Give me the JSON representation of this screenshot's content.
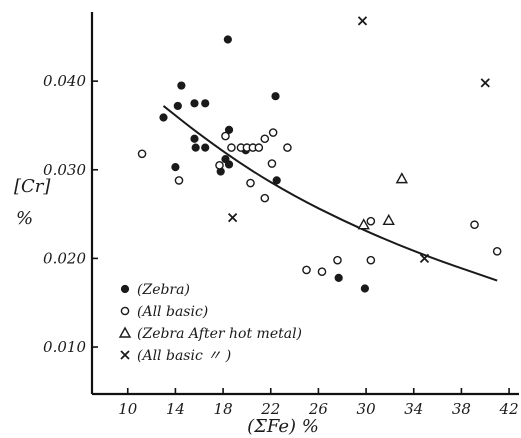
{
  "chart_data": {
    "type": "scatter",
    "title": "",
    "xlabel": "(ΣFe)   %",
    "ylabel": [
      "[Cr]",
      "%"
    ],
    "xlim": [
      7,
      43
    ],
    "ylim": [
      0.0047,
      0.0478
    ],
    "x_ticks": [
      "10",
      "14",
      "18",
      "22",
      "26",
      "30",
      "34",
      "38",
      "42"
    ],
    "y_ticks": [
      "0.010",
      "0.020",
      "0.030",
      "0.040"
    ],
    "grid": false,
    "legend_position": "bottom-left",
    "series": [
      {
        "name": "(Zebra)",
        "marker": "filled-circle",
        "color": "#1a1a1a",
        "points": [
          [
            13.0,
            0.0359
          ],
          [
            14.2,
            0.0372
          ],
          [
            14.5,
            0.0395
          ],
          [
            14.0,
            0.0303
          ],
          [
            15.6,
            0.0375
          ],
          [
            16.5,
            0.0375
          ],
          [
            15.6,
            0.0335
          ],
          [
            15.7,
            0.0325
          ],
          [
            16.5,
            0.0325
          ],
          [
            17.8,
            0.0298
          ],
          [
            18.2,
            0.0312
          ],
          [
            18.5,
            0.0345
          ],
          [
            18.5,
            0.0306
          ],
          [
            19.9,
            0.0322
          ],
          [
            18.4,
            0.0447
          ],
          [
            22.4,
            0.0383
          ],
          [
            22.5,
            0.0288
          ],
          [
            27.7,
            0.0178
          ],
          [
            29.9,
            0.0166
          ]
        ]
      },
      {
        "name": "(All basic)",
        "marker": "open-circle",
        "color": "#1a1a1a",
        "points": [
          [
            11.2,
            0.0318
          ],
          [
            14.3,
            0.0288
          ],
          [
            17.7,
            0.0305
          ],
          [
            18.2,
            0.0338
          ],
          [
            18.7,
            0.0325
          ],
          [
            19.5,
            0.0325
          ],
          [
            20.0,
            0.0325
          ],
          [
            20.5,
            0.0325
          ],
          [
            20.3,
            0.0285
          ],
          [
            21.0,
            0.0325
          ],
          [
            21.5,
            0.0335
          ],
          [
            22.2,
            0.0342
          ],
          [
            22.1,
            0.0307
          ],
          [
            21.5,
            0.0268
          ],
          [
            23.4,
            0.0325
          ],
          [
            25.0,
            0.0187
          ],
          [
            26.3,
            0.0185
          ],
          [
            27.6,
            0.0198
          ],
          [
            30.4,
            0.0242
          ],
          [
            30.4,
            0.0198
          ],
          [
            39.1,
            0.0238
          ],
          [
            41.0,
            0.0208
          ]
        ]
      },
      {
        "name": "(Zebra After hot metal)",
        "marker": "open-triangle",
        "color": "#1a1a1a",
        "points": [
          [
            29.8,
            0.0238
          ],
          [
            31.9,
            0.0243
          ],
          [
            33.0,
            0.029
          ]
        ]
      },
      {
        "name": "(All basic        〃         )",
        "marker": "cross",
        "color": "#1a1a1a",
        "points": [
          [
            29.7,
            0.0468
          ],
          [
            40.0,
            0.0398
          ],
          [
            18.8,
            0.0246
          ],
          [
            34.9,
            0.02
          ]
        ]
      }
    ],
    "trend_curve": {
      "type": "line",
      "color": "#1a1a1a",
      "points": [
        [
          13.0,
          0.0372
        ],
        [
          16.0,
          0.034
        ],
        [
          20.0,
          0.0302
        ],
        [
          24.0,
          0.027
        ],
        [
          28.0,
          0.0243
        ],
        [
          32.0,
          0.0219
        ],
        [
          36.0,
          0.0198
        ],
        [
          41.0,
          0.0175
        ]
      ]
    }
  }
}
